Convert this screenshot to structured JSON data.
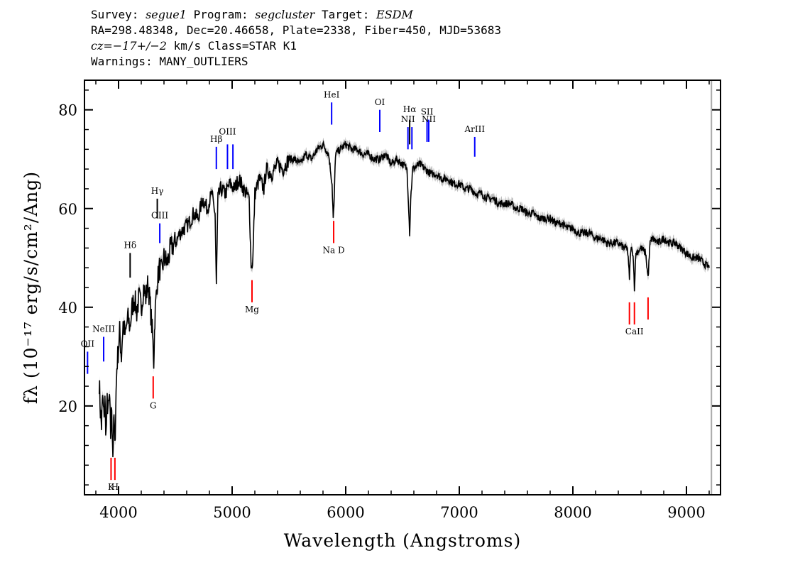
{
  "header": {
    "line1": {
      "survey_label": "Survey: ",
      "survey": "segue1",
      "program_label": " Program: ",
      "program": "segcluster",
      "target_label": " Target: ",
      "target": "ESDM"
    },
    "line2": "RA=298.48348, Dec=20.46658, Plate=2338, Fiber=450, MJD=53683",
    "line3": {
      "cz": "cz=−17+/−2",
      "rest": " km/s Class=STAR K1"
    },
    "line4": "Warnings: MANY_OUTLIERS"
  },
  "chart_data": {
    "type": "line",
    "title": "",
    "xlabel": "Wavelength (Angstroms)",
    "ylabel": "fλ (10⁻¹⁷ erg/s/cm²/Ang)",
    "xlim": [
      3700,
      9300
    ],
    "ylim": [
      2,
      86
    ],
    "xticks": [
      4000,
      5000,
      6000,
      7000,
      8000,
      9000
    ],
    "yticks": [
      20,
      40,
      60,
      80
    ],
    "grid": false,
    "series": [
      {
        "color": "#000000",
        "error_color": "#aaaaaa",
        "points": [
          [
            3830,
            25
          ],
          [
            3840,
            19
          ],
          [
            3850,
            16
          ],
          [
            3860,
            22
          ],
          [
            3870,
            18
          ],
          [
            3880,
            21
          ],
          [
            3890,
            14
          ],
          [
            3900,
            21
          ],
          [
            3910,
            19
          ],
          [
            3920,
            22
          ],
          [
            3930,
            14
          ],
          [
            3940,
            20
          ],
          [
            3950,
            10
          ],
          [
            3960,
            18
          ],
          [
            3968,
            11
          ],
          [
            3975,
            20
          ],
          [
            3985,
            28
          ],
          [
            4000,
            32
          ],
          [
            4010,
            35
          ],
          [
            4025,
            30
          ],
          [
            4040,
            37
          ],
          [
            4060,
            34
          ],
          [
            4080,
            38
          ],
          [
            4100,
            36
          ],
          [
            4120,
            40
          ],
          [
            4140,
            42
          ],
          [
            4160,
            39
          ],
          [
            4180,
            42
          ],
          [
            4200,
            40
          ],
          [
            4220,
            44
          ],
          [
            4240,
            42
          ],
          [
            4260,
            45
          ],
          [
            4280,
            40
          ],
          [
            4300,
            34
          ],
          [
            4310,
            29
          ],
          [
            4320,
            38
          ],
          [
            4340,
            45
          ],
          [
            4360,
            48
          ],
          [
            4380,
            47
          ],
          [
            4400,
            50
          ],
          [
            4430,
            49
          ],
          [
            4460,
            52
          ],
          [
            4500,
            53
          ],
          [
            4540,
            55
          ],
          [
            4580,
            56
          ],
          [
            4620,
            57
          ],
          [
            4660,
            59
          ],
          [
            4700,
            58
          ],
          [
            4740,
            62
          ],
          [
            4780,
            60
          ],
          [
            4820,
            63
          ],
          [
            4850,
            59
          ],
          [
            4861,
            44
          ],
          [
            4875,
            62
          ],
          [
            4900,
            64
          ],
          [
            4940,
            63
          ],
          [
            4980,
            65
          ],
          [
            5020,
            64
          ],
          [
            5060,
            66
          ],
          [
            5100,
            64
          ],
          [
            5150,
            62
          ],
          [
            5167,
            49
          ],
          [
            5172,
            48
          ],
          [
            5183,
            50
          ],
          [
            5200,
            63
          ],
          [
            5240,
            66
          ],
          [
            5280,
            64
          ],
          [
            5300,
            68
          ],
          [
            5350,
            67
          ],
          [
            5400,
            69
          ],
          [
            5450,
            68
          ],
          [
            5500,
            70
          ],
          [
            5550,
            70
          ],
          [
            5600,
            69
          ],
          [
            5650,
            71
          ],
          [
            5700,
            70
          ],
          [
            5750,
            72
          ],
          [
            5800,
            73
          ],
          [
            5850,
            71
          ],
          [
            5880,
            65
          ],
          [
            5890,
            58
          ],
          [
            5896,
            60
          ],
          [
            5910,
            71
          ],
          [
            5950,
            72
          ],
          [
            6000,
            73
          ],
          [
            6050,
            72
          ],
          [
            6100,
            72
          ],
          [
            6150,
            71
          ],
          [
            6200,
            71
          ],
          [
            6250,
            70
          ],
          [
            6300,
            70
          ],
          [
            6350,
            71
          ],
          [
            6400,
            69
          ],
          [
            6450,
            70
          ],
          [
            6500,
            69
          ],
          [
            6540,
            68
          ],
          [
            6555,
            60
          ],
          [
            6563,
            55
          ],
          [
            6572,
            62
          ],
          [
            6590,
            68
          ],
          [
            6650,
            69
          ],
          [
            6700,
            68
          ],
          [
            6750,
            67
          ],
          [
            6800,
            67
          ],
          [
            6850,
            66
          ],
          [
            6900,
            66
          ],
          [
            6950,
            65
          ],
          [
            7000,
            65
          ],
          [
            7050,
            64
          ],
          [
            7100,
            64
          ],
          [
            7150,
            63
          ],
          [
            7200,
            63
          ],
          [
            7250,
            62
          ],
          [
            7300,
            62
          ],
          [
            7350,
            61
          ],
          [
            7400,
            61
          ],
          [
            7450,
            61
          ],
          [
            7500,
            60
          ],
          [
            7550,
            60
          ],
          [
            7600,
            59
          ],
          [
            7650,
            59
          ],
          [
            7700,
            58
          ],
          [
            7750,
            58
          ],
          [
            7800,
            58
          ],
          [
            7850,
            57
          ],
          [
            7900,
            57
          ],
          [
            7950,
            56
          ],
          [
            8000,
            56
          ],
          [
            8050,
            55
          ],
          [
            8100,
            55
          ],
          [
            8150,
            55
          ],
          [
            8200,
            54
          ],
          [
            8250,
            54
          ],
          [
            8300,
            53
          ],
          [
            8350,
            53
          ],
          [
            8400,
            53
          ],
          [
            8450,
            52
          ],
          [
            8480,
            52
          ],
          [
            8498,
            46
          ],
          [
            8510,
            52
          ],
          [
            8530,
            51
          ],
          [
            8542,
            44
          ],
          [
            8555,
            51
          ],
          [
            8600,
            52
          ],
          [
            8640,
            51
          ],
          [
            8662,
            46
          ],
          [
            8680,
            53
          ],
          [
            8700,
            54
          ],
          [
            8750,
            53
          ],
          [
            8800,
            54
          ],
          [
            8850,
            53
          ],
          [
            8900,
            53
          ],
          [
            8950,
            52
          ],
          [
            9000,
            51
          ],
          [
            9050,
            50
          ],
          [
            9100,
            50
          ],
          [
            9150,
            49
          ],
          [
            9200,
            48
          ]
        ]
      }
    ],
    "emission_lines": [
      {
        "label": "OII",
        "x": 3727,
        "y1": 26.5,
        "y2": 31,
        "color": "#0000ff",
        "label_y": 32
      },
      {
        "label": "NeIII",
        "x": 3869,
        "y1": 29,
        "y2": 34,
        "color": "#0000ff",
        "label_y": 35
      },
      {
        "label": "Hδ",
        "x": 4102,
        "y1": 46,
        "y2": 51,
        "color": "#000000",
        "label_y": 52
      },
      {
        "label": "Hγ",
        "x": 4341,
        "y1": 58,
        "y2": 62,
        "color": "#000000",
        "label_y": 63
      },
      {
        "label": "OIII",
        "x": 4363,
        "y1": 53,
        "y2": 57,
        "color": "#0000ff",
        "label_y": 58
      },
      {
        "label": "Hβ",
        "x": 4861,
        "y1": 68,
        "y2": 72.5,
        "color": "#0000ff",
        "label_y": 73.5
      },
      {
        "label": "OIII",
        "x": 4959,
        "y1": 68,
        "y2": 73,
        "color": "#0000ff",
        "label_y": 75
      },
      {
        "label": "",
        "x": 5007,
        "y1": 68,
        "y2": 73,
        "color": "#0000ff",
        "label_y": 75
      },
      {
        "label": "HeI",
        "x": 5876,
        "y1": 77,
        "y2": 81.5,
        "color": "#0000ff",
        "label_y": 82.5
      },
      {
        "label": "OI",
        "x": 6300,
        "y1": 75.5,
        "y2": 80,
        "color": "#0000ff",
        "label_y": 81
      },
      {
        "label": "NII",
        "x": 6548,
        "y1": 72,
        "y2": 76.5,
        "color": "#0000ff",
        "label_y": 77.5
      },
      {
        "label": "Hα",
        "x": 6563,
        "y1": 73,
        "y2": 78,
        "color": "#000000",
        "label_y": 79.5
      },
      {
        "label": "",
        "x": 6583,
        "y1": 72,
        "y2": 76.5,
        "color": "#0000ff",
        "label_y": 77.5
      },
      {
        "label": "SII",
        "x": 6716,
        "y1": 73.5,
        "y2": 78,
        "color": "#0000ff",
        "label_y": 79
      },
      {
        "label": "NII",
        "x": 6731,
        "y1": 73.5,
        "y2": 78,
        "color": "#0000ff",
        "label_y": 77.5
      },
      {
        "label": "ArIII",
        "x": 7136,
        "y1": 70.5,
        "y2": 74.5,
        "color": "#0000ff",
        "label_y": 75.5
      }
    ],
    "absorption_lines": [
      {
        "label": "K",
        "x": 3934,
        "y1": 5,
        "y2": 9.5,
        "color": "#ff0000",
        "label_y": 3
      },
      {
        "label": "H",
        "x": 3968,
        "y1": 5,
        "y2": 9.5,
        "color": "#ff0000",
        "label_y": 3
      },
      {
        "label": "G",
        "x": 4305,
        "y1": 21.5,
        "y2": 26,
        "color": "#ff0000",
        "label_y": 19.5
      },
      {
        "label": "Mg",
        "x": 5175,
        "y1": 41,
        "y2": 45.5,
        "color": "#ff0000",
        "label_y": 39
      },
      {
        "label": "Na D",
        "x": 5894,
        "y1": 53,
        "y2": 57.5,
        "color": "#ff0000",
        "label_y": 51
      },
      {
        "label": "",
        "x": 8498,
        "y1": 36.5,
        "y2": 41,
        "color": "#ff0000",
        "label_y": 34.5
      },
      {
        "label": "CaII",
        "x": 8542,
        "y1": 36.5,
        "y2": 41,
        "color": "#ff0000",
        "label_y": 34.5
      },
      {
        "label": "",
        "x": 8662,
        "y1": 37.5,
        "y2": 42,
        "color": "#ff0000",
        "label_y": 34.5
      }
    ],
    "edge_marker": {
      "x": 9220,
      "color": "#aaaaaa"
    }
  }
}
